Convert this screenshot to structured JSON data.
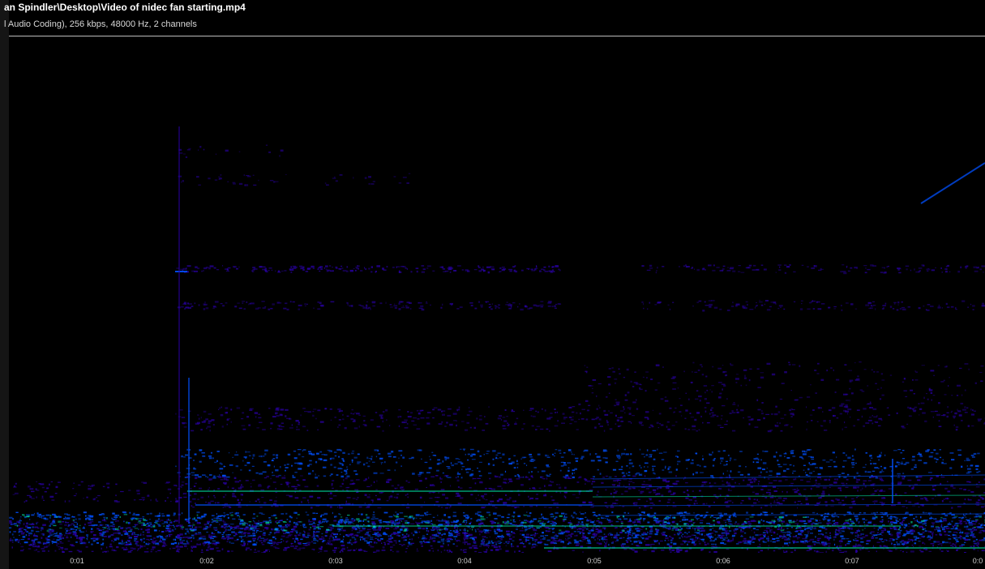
{
  "header": {
    "file_path": "an Spindler\\Desktop\\Video of nidec fan starting.mp4",
    "stream_info": "l Audio Coding), 256 kbps, 48000 Hz, 2 channels"
  },
  "time_axis": {
    "tick_labels": [
      "0:01",
      "0:02",
      "0:03",
      "0:04",
      "0:05",
      "0:06",
      "0:07",
      "0:0"
    ]
  },
  "colors": {
    "background": "#000000",
    "low_intensity": "#2a00a8",
    "mid_intensity": "#0050ff",
    "high_intensity": "#00e0a0",
    "axis_text": "#d0d0d0",
    "rule": "#bcbcbc"
  }
}
